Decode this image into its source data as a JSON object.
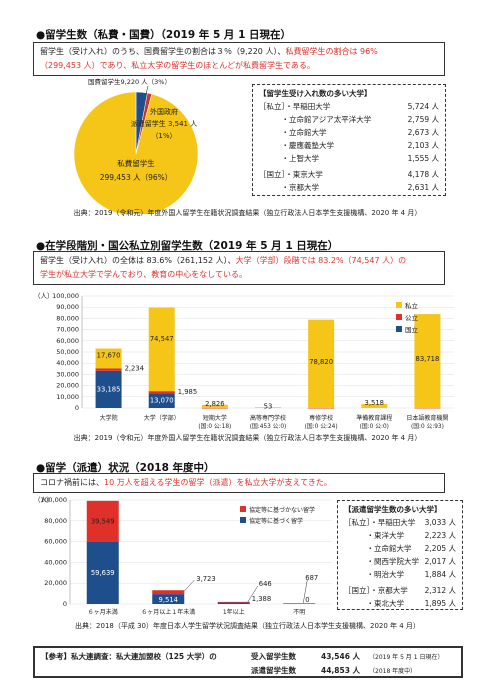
{
  "s1": {
    "title": "●留学生数（私費・国費）（2019 年 5 月 1 日現在）",
    "desc1": "留学生（受け入れ）のうち、国費留学生の割合は３％（9,220 人）、",
    "desc2": "私費留学生の割合は 96%",
    "desc3": "（299,453 人）であり、私立大学の留学生のほとんどが私費留学生である。",
    "pie_kokuhi": "国費留学生9,220 人（3%）",
    "pie_gaikoku1": "外国政府",
    "pie_gaikoku2": "派遣留学生 3,541 人",
    "pie_gaikoku3": "（1%）",
    "pie_shihi1": "私費留学生",
    "pie_shihi2": "299,453 人（96%）",
    "list_title": "【留学生受け入れ数の多い大学】",
    "groups": [
      {
        "cat": "［私立］",
        "items": [
          [
            "・早稲田大学",
            "5,724 人"
          ],
          [
            "・立命館アジア太平洋大学",
            "2,759 人"
          ],
          [
            "・立命館大学",
            "2,673 人"
          ],
          [
            "・慶應義塾大学",
            "2,103 人"
          ],
          [
            "・上智大学",
            "1,555 人"
          ]
        ]
      },
      {
        "cat": "［国立］",
        "items": [
          [
            "・東京大学",
            "4,178 人"
          ],
          [
            "・京都大学",
            "2,631 人"
          ]
        ]
      }
    ],
    "source": "出典：2019（令和元）年度外国人留学生在籍状況調査結果（独立行政法人日本学生支援機構、2020 年 4 月）"
  },
  "s2": {
    "title": "●在学段階別・国公私立別留学生数（2019 年 5 月 1 日現在）",
    "desc1": "留学生（受け入れ）の全体は 83.6%（261,152 人）、",
    "desc2": "大学（学部）段階では 83.2%（74,547 人）の",
    "desc3": "学生が私立大学で学んでおり、教育の中心をなしている。",
    "unit": "（人）",
    "source": "出典：2019（令和元）年度外国人留学生在籍状況調査結果（独立行政法人日本学生支援機構、2020 年 4 月）"
  },
  "s3": {
    "title": "●留学（派遣）状況（2018 年度中）",
    "desc1": "コロナ禍前には、",
    "desc2": "10 万人を超える学生の留学（派遣）を私立大学が支えてきた。",
    "unit": "（人）",
    "list_title": "【派遣留学生数の多い大学】",
    "groups": [
      {
        "cat": "［私立］",
        "items": [
          [
            "・早稲田大学",
            "3,033 人"
          ],
          [
            "・東洋大学",
            "2,223 人"
          ],
          [
            "・立命館大学",
            "2,205 人"
          ],
          [
            "・関西学院大学",
            "2,017 人"
          ],
          [
            "・明治大学",
            "1,884 人"
          ]
        ]
      },
      {
        "cat": "［国立］",
        "items": [
          [
            "・京都大学",
            "2,312 人"
          ],
          [
            "・東北大学",
            "1,895 人"
          ]
        ]
      }
    ],
    "source": "出典：2018（平成 30）年度日本人学生留学状況調査結果（独立行政法人日本学生支援機構、2020 年 4 月）"
  },
  "ref": {
    "label": "【参考】私大連調査：私大連加盟校（125 大学）の",
    "l1": "受入留学生数",
    "v1": "43,546 人",
    "d1": "（2019 年 5 月 1 日現在）",
    "l2": "派遣留学生数",
    "v2": "44,853 人",
    "d2": "（2018 年度中）"
  },
  "chart_data": [
    {
      "type": "pie",
      "title": "",
      "values": [
        {
          "name": "私費留学生",
          "value": 299453,
          "pct": 96
        },
        {
          "name": "国費留学生",
          "value": 9220,
          "pct": 3
        },
        {
          "name": "外国政府派遣留学生",
          "value": 3541,
          "pct": 1
        }
      ],
      "colors": [
        "#f5c518",
        "#1f4e8c",
        "#c0392b"
      ]
    },
    {
      "type": "bar",
      "stacked": true,
      "categories": [
        [
          "大学院",
          ""
        ],
        [
          "大学（学部）",
          ""
        ],
        [
          "短期大学",
          "(国:0 公:18)"
        ],
        [
          "高等専門学校",
          "(国:453 公:0)"
        ],
        [
          "専修学校",
          "(国:0 公:24)"
        ],
        [
          "準備教育課程",
          "(国:0 公:0)"
        ],
        [
          "日本語教育機関",
          "(国:0 公:93)"
        ]
      ],
      "series": [
        {
          "name": "国立",
          "color": "#1f4e8c",
          "values": [
            33185,
            13070,
            0,
            453,
            0,
            0,
            0
          ]
        },
        {
          "name": "公立",
          "color": "#e0302a",
          "values": [
            2234,
            1985,
            18,
            0,
            24,
            0,
            93
          ]
        },
        {
          "name": "私立",
          "color": "#f5c518",
          "values": [
            17670,
            74547,
            2826,
            53,
            78820,
            3518,
            83718
          ]
        }
      ],
      "labels": {
        "private": [
          "17,670",
          "74,547",
          "2,826",
          "53",
          "78,820",
          "3,518",
          "83,718"
        ],
        "national": [
          "33,185",
          "13,070"
        ],
        "public": [
          "2,234",
          "1,985"
        ]
      },
      "ylim": [
        0,
        100000
      ],
      "yticks": [
        "0",
        "10,000",
        "20,000",
        "30,000",
        "40,000",
        "50,000",
        "60,000",
        "70,000",
        "80,000",
        "90,000",
        "100,000"
      ],
      "legend": [
        "私立",
        "公立",
        "国立"
      ]
    },
    {
      "type": "bar",
      "stacked": true,
      "categories": [
        "６ヶ月未満",
        "６ヶ月以上１年未満",
        "1年以上",
        "不明"
      ],
      "series": [
        {
          "name": "協定等に基づく留学",
          "color": "#1f4e8c",
          "values": [
            59639,
            9514,
            1388,
            0
          ]
        },
        {
          "name": "協定等に基づかない留学",
          "color": "#e0302a",
          "values": [
            39549,
            3723,
            646,
            687
          ]
        }
      ],
      "labels": {
        "agreement": [
          "59,639",
          "9,514",
          "1,388",
          "0"
        ],
        "non_agreement": [
          "39,549",
          "3,723",
          "646",
          "687"
        ]
      },
      "ylim": [
        0,
        100000
      ],
      "yticks": [
        "0",
        "20,000",
        "40,000",
        "60,000",
        "80,000",
        "100,000"
      ],
      "legend": [
        "協定等に基づかない留学",
        "協定等に基づく留学"
      ]
    }
  ]
}
